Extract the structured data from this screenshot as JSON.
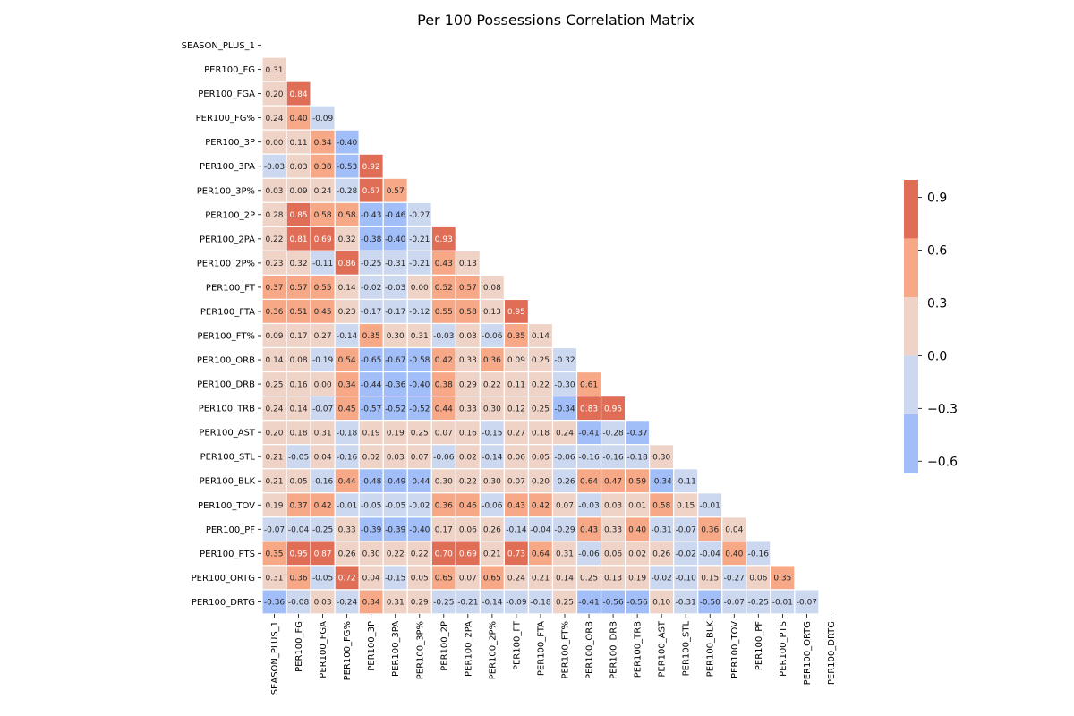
{
  "chart_data": {
    "type": "heatmap",
    "title": "Per 100 Possessions Correlation Matrix",
    "xlabel": "",
    "ylabel": "",
    "mask": "upper-triangle",
    "variables": [
      "SEASON_PLUS_1",
      "PER100_FG",
      "PER100_FGA",
      "PER100_FG%",
      "PER100_3P",
      "PER100_3PA",
      "PER100_3P%",
      "PER100_2P",
      "PER100_2PA",
      "PER100_2P%",
      "PER100_FT",
      "PER100_FTA",
      "PER100_FT%",
      "PER100_ORB",
      "PER100_DRB",
      "PER100_TRB",
      "PER100_AST",
      "PER100_STL",
      "PER100_BLK",
      "PER100_TOV",
      "PER100_PF",
      "PER100_PTS",
      "PER100_ORTG",
      "PER100_DRTG"
    ],
    "values": [
      [],
      [
        0.31
      ],
      [
        0.2,
        0.84
      ],
      [
        0.24,
        0.4,
        -0.09
      ],
      [
        0.0,
        0.11,
        0.34,
        -0.4
      ],
      [
        -0.03,
        0.03,
        0.38,
        -0.53,
        0.92
      ],
      [
        0.03,
        0.09,
        0.24,
        -0.28,
        0.67,
        0.57
      ],
      [
        0.28,
        0.85,
        0.58,
        0.58,
        -0.43,
        -0.46,
        -0.27
      ],
      [
        0.22,
        0.81,
        0.69,
        0.32,
        -0.38,
        -0.4,
        -0.21,
        0.93
      ],
      [
        0.23,
        0.32,
        -0.11,
        0.86,
        -0.25,
        -0.31,
        -0.21,
        0.43,
        0.13
      ],
      [
        0.37,
        0.57,
        0.55,
        0.14,
        -0.02,
        -0.03,
        0.0,
        0.52,
        0.57,
        0.08
      ],
      [
        0.36,
        0.51,
        0.45,
        0.23,
        -0.17,
        -0.17,
        -0.12,
        0.55,
        0.58,
        0.13,
        0.95
      ],
      [
        0.09,
        0.17,
        0.27,
        -0.14,
        0.35,
        0.3,
        0.31,
        -0.03,
        0.03,
        -0.06,
        0.35,
        0.14
      ],
      [
        0.14,
        0.08,
        -0.19,
        0.54,
        -0.65,
        -0.67,
        -0.58,
        0.42,
        0.33,
        0.36,
        0.09,
        0.25,
        -0.32
      ],
      [
        0.25,
        0.16,
        0.0,
        0.34,
        -0.44,
        -0.36,
        -0.4,
        0.38,
        0.29,
        0.22,
        0.11,
        0.22,
        -0.3,
        0.61
      ],
      [
        0.24,
        0.14,
        -0.07,
        0.45,
        -0.57,
        -0.52,
        -0.52,
        0.44,
        0.33,
        0.3,
        0.12,
        0.25,
        -0.34,
        0.83,
        0.95
      ],
      [
        0.2,
        0.18,
        0.31,
        -0.18,
        0.19,
        0.19,
        0.25,
        0.07,
        0.16,
        -0.15,
        0.27,
        0.18,
        0.24,
        -0.41,
        -0.28,
        -0.37
      ],
      [
        0.21,
        -0.05,
        0.04,
        -0.16,
        0.02,
        0.03,
        0.07,
        -0.06,
        0.02,
        -0.14,
        0.06,
        0.05,
        -0.06,
        -0.16,
        -0.16,
        -0.18,
        0.3
      ],
      [
        0.21,
        0.05,
        -0.16,
        0.44,
        -0.48,
        -0.49,
        -0.44,
        0.3,
        0.22,
        0.3,
        0.07,
        0.2,
        -0.26,
        0.64,
        0.47,
        0.59,
        -0.34,
        -0.11
      ],
      [
        0.19,
        0.37,
        0.42,
        -0.01,
        -0.05,
        -0.05,
        -0.02,
        0.36,
        0.46,
        -0.06,
        0.43,
        0.42,
        0.07,
        -0.03,
        0.03,
        0.01,
        0.58,
        0.15,
        -0.01
      ],
      [
        -0.07,
        -0.04,
        -0.25,
        0.33,
        -0.39,
        -0.39,
        -0.4,
        0.17,
        0.06,
        0.26,
        -0.14,
        -0.04,
        -0.29,
        0.43,
        0.33,
        0.4,
        -0.31,
        -0.07,
        0.36,
        0.04
      ],
      [
        0.35,
        0.95,
        0.87,
        0.26,
        0.3,
        0.22,
        0.22,
        0.7,
        0.69,
        0.21,
        0.73,
        0.64,
        0.31,
        -0.06,
        0.06,
        0.02,
        0.26,
        -0.02,
        -0.04,
        0.4,
        -0.16
      ],
      [
        0.31,
        0.36,
        -0.05,
        0.72,
        0.04,
        -0.15,
        0.05,
        0.65,
        0.07,
        0.65,
        0.24,
        0.21,
        0.14,
        0.25,
        0.13,
        0.19,
        -0.02,
        -0.1,
        0.15,
        -0.27,
        0.06,
        0.35
      ],
      [
        -0.36,
        -0.08,
        0.03,
        -0.24,
        0.34,
        0.31,
        0.29,
        -0.25,
        -0.21,
        -0.14,
        -0.09,
        -0.18,
        0.25,
        -0.41,
        -0.56,
        -0.56,
        0.1,
        -0.31,
        -0.5,
        -0.07,
        -0.25,
        -0.01,
        -0.07
      ]
    ],
    "colorbar": {
      "ticks": [
        "0.9",
        "0.6",
        "0.3",
        "0.0",
        "−0.3",
        "−0.6"
      ],
      "tick_values": [
        0.9,
        0.6,
        0.3,
        0.0,
        -0.3,
        -0.6
      ],
      "range": [
        -0.67,
        1.0
      ],
      "bins": [
        {
          "from": -0.67,
          "to": -0.333,
          "color": "#a1bef8"
        },
        {
          "from": -0.333,
          "to": 0.0,
          "color": "#ccd8f0"
        },
        {
          "from": 0.0,
          "to": 0.333,
          "color": "#f0d3c7"
        },
        {
          "from": 0.333,
          "to": 0.667,
          "color": "#f6a887"
        },
        {
          "from": 0.667,
          "to": 1.0,
          "color": "#e06d55"
        }
      ]
    },
    "colors": {
      "light_text": "#ffffff",
      "dark_text": "#262626",
      "cell_border": "#ffffff"
    }
  }
}
